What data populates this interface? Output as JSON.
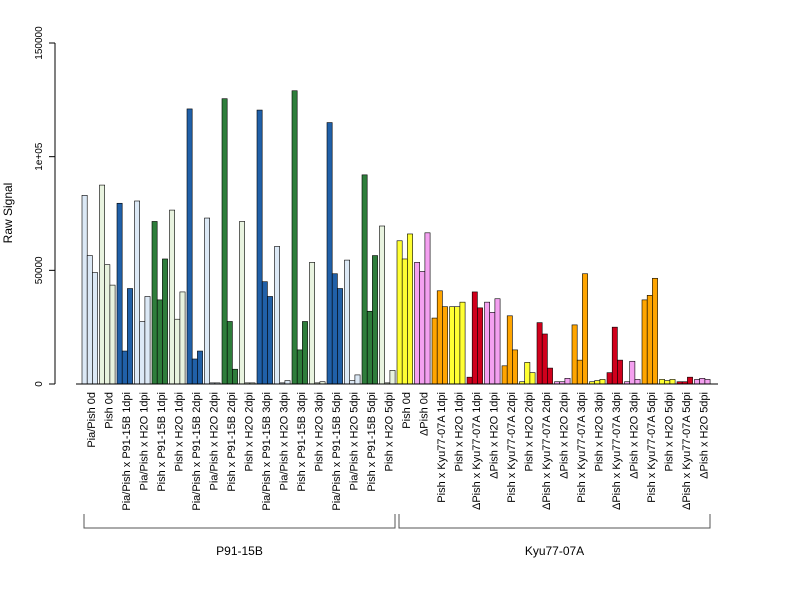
{
  "chart_data": {
    "type": "bar",
    "ylabel": "Raw Signal",
    "ylim": [
      0,
      150000
    ],
    "yticks": [
      {
        "value": 0,
        "label": "0"
      },
      {
        "value": 50000,
        "label": "50000"
      },
      {
        "value": 100000,
        "label": "1e+05"
      },
      {
        "value": 150000,
        "label": "150000"
      }
    ],
    "categories": [
      "Pia/Pish 0d",
      "Pish 0d",
      "Pia/Pish x P91-15B 1dpi",
      "Pia/Pish x H2O 1dpi",
      "Pish x P91-15B 1dpi",
      "Pish x H2O 1dpi",
      "Pia/Pish x P91-15B 2dpi",
      "Pia/Pish x H2O 2dpi",
      "Pish x P91-15B 2dpi",
      "Pish x H2O 2dpi",
      "Pia/Pish x P91-15B 3dpi",
      "Pia/Pish x H2O 3dpi",
      "Pish x P91-15B 3dpi",
      "Pish x H2O 3dpi",
      "Pia/Pish x P91-15B 5dpi",
      "Pia/Pish x H2O 5dpi",
      "Pish x P91-15B 5dpi",
      "Pish x H2O 5dpi",
      "Pish 0d",
      "ΔPish 0d",
      "Pish x Kyu77-07A 1dpi",
      "Pish x H2O 1dpi",
      "ΔPish x Kyu77-07A 1dpi",
      "ΔPish x H2O 1dpi",
      "Pish x Kyu77-07A 2dpi",
      "Pish x H2O 2dpi",
      "ΔPish x Kyu77-07A 2dpi",
      "ΔPish x H2O 2dpi",
      "Pish x Kyu77-07A 3dpi",
      "Pish x H2O 3dpi",
      "ΔPish x Kyu77-07A 3dpi",
      "ΔPish x H2O 3dpi",
      "Pish x Kyu77-07A 5dpi",
      "Pish x H2O 5dpi",
      "ΔPish x Kyu77-07A 5dpi",
      "ΔPish x H2O 5dpi"
    ],
    "groups": [
      {
        "label": "P91-15B",
        "from": 0,
        "to": 17
      },
      {
        "label": "Kyu77-07A",
        "from": 18,
        "to": 35
      }
    ],
    "bar_colors": [
      "#dce9f6",
      "#e8f3df",
      "#2060a8",
      "#dce9f6",
      "#2e7d3b",
      "#e8f3df",
      "#2060a8",
      "#dce9f6",
      "#2e7d3b",
      "#e8f3df",
      "#2060a8",
      "#dce9f6",
      "#2e7d3b",
      "#e8f3df",
      "#2060a8",
      "#dce9f6",
      "#2e7d3b",
      "#e8f3df",
      "#ffff33",
      "#f4a0f0",
      "#ffa500",
      "#ffff33",
      "#d0001c",
      "#f4a0f0",
      "#ffa500",
      "#ffff33",
      "#d0001c",
      "#f4a0f0",
      "#ffa500",
      "#ffff33",
      "#d0001c",
      "#f4a0f0",
      "#ffa500",
      "#ffff33",
      "#d0001c",
      "#f4a0f0"
    ],
    "values": [
      [
        83000,
        56500,
        49000
      ],
      [
        87500,
        52500,
        43500
      ],
      [
        79500,
        14500,
        42000
      ],
      [
        80500,
        27500,
        38500
      ],
      [
        71500,
        37000,
        55000
      ],
      [
        76500,
        28500,
        40500
      ],
      [
        121000,
        11000,
        14500
      ],
      [
        73000,
        500,
        500
      ],
      [
        125500,
        27500,
        6500
      ],
      [
        71500,
        500,
        500
      ],
      [
        120500,
        45000,
        38500
      ],
      [
        60500,
        500,
        1500
      ],
      [
        129000,
        15000,
        27500
      ],
      [
        53500,
        500,
        1000
      ],
      [
        115000,
        48500,
        42000
      ],
      [
        54500,
        1500,
        4000
      ],
      [
        92000,
        32000,
        56500
      ],
      [
        69500,
        500,
        6000
      ],
      [
        63000,
        55000,
        66000
      ],
      [
        53500,
        49500,
        66500
      ],
      [
        29000,
        41000,
        34000
      ],
      [
        34000,
        34000,
        36000
      ],
      [
        3000,
        40500,
        33500
      ],
      [
        36000,
        31500,
        37500
      ],
      [
        8000,
        30000,
        15000
      ],
      [
        1000,
        9500,
        5000
      ],
      [
        27000,
        22000,
        7000
      ],
      [
        1000,
        1000,
        2500
      ],
      [
        26000,
        10500,
        48500
      ],
      [
        1000,
        1500,
        2000
      ],
      [
        5000,
        25000,
        10500
      ],
      [
        1000,
        10000,
        2000
      ],
      [
        37000,
        39000,
        46500
      ],
      [
        2000,
        1500,
        2000
      ],
      [
        1000,
        1000,
        3000
      ],
      [
        2000,
        2500,
        2000
      ]
    ]
  }
}
